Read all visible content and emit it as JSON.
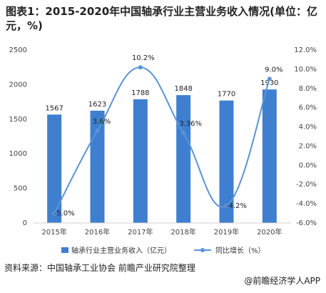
{
  "title": "图表1：2015-2020年中国轴承行业主营业务收入情况(单位：亿元，%)",
  "source": "资料来源：中国轴承工业协会 前瞻产业研究院整理",
  "brand": "@前瞻经济学人APP",
  "colors": {
    "bar": "#3f7fcf",
    "line": "#5b93d6"
  },
  "chart_data": {
    "type": "bar+line",
    "categories": [
      "2015年",
      "2016年",
      "2017年",
      "2018年",
      "2019年",
      "2020年"
    ],
    "series": [
      {
        "name": "轴承行业主营业务收入（亿元）",
        "type": "bar",
        "axis": "left",
        "values": [
          1567,
          1623,
          1788,
          1848,
          1770,
          1930
        ],
        "labels": [
          "1567",
          "1623",
          "1788",
          "1848",
          "1770",
          "1930"
        ]
      },
      {
        "name": "同比增长（%）",
        "type": "line",
        "axis": "right",
        "values": [
          -5.0,
          3.6,
          10.2,
          3.36,
          -4.2,
          9.0
        ],
        "labels": [
          "-5.0%",
          "3.6%",
          "10.2%",
          "3.36%",
          "-4.2%",
          "9.0%"
        ]
      }
    ],
    "y_left": {
      "min": 0,
      "max": 2500,
      "ticks": [
        0,
        500,
        1000,
        1500,
        2000,
        2500
      ],
      "tick_labels": [
        "0",
        "500",
        "1000",
        "1500",
        "2000",
        "2500"
      ]
    },
    "y_right": {
      "min": -6,
      "max": 12,
      "ticks": [
        -6,
        -4,
        -2,
        0,
        2,
        4,
        6,
        8,
        10,
        12
      ],
      "tick_labels": [
        "-6.0%",
        "-4.0%",
        "-2.0%",
        "0.0%",
        "2.0%",
        "4.0%",
        "6.0%",
        "8.0%",
        "10.0%",
        "12.0%"
      ]
    },
    "grid": false,
    "legend_position": "bottom"
  }
}
